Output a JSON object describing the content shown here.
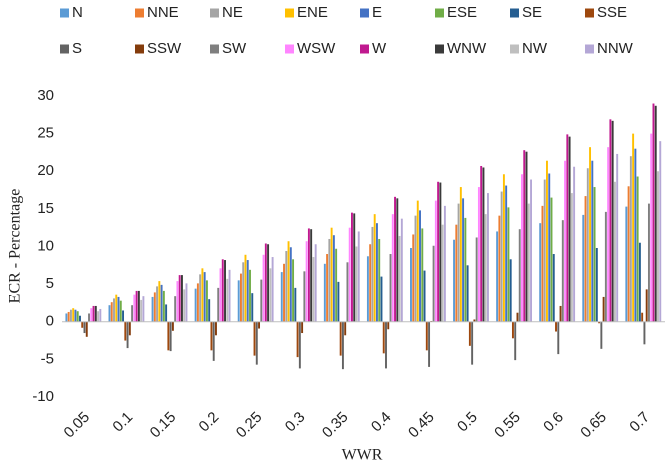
{
  "chart_data": {
    "type": "bar",
    "x_label": "WWR",
    "y_label": "ECR - Percentage",
    "categories": [
      "0.05",
      "0.1",
      "0.15",
      "0.2",
      "0.25",
      "0.3",
      "0.35",
      "0.4",
      "0.45",
      "0.5",
      "0.55",
      "0.6",
      "0.65",
      "0.7"
    ],
    "ylim": [
      -10,
      30
    ],
    "yticks": [
      -10,
      -5,
      0,
      5,
      10,
      15,
      20,
      25,
      30
    ],
    "grid": false,
    "series": [
      {
        "name": "N",
        "color": "#5b9bd5",
        "values": [
          1.1,
          2.2,
          3.3,
          4.4,
          5.5,
          6.6,
          7.7,
          8.7,
          9.8,
          10.9,
          12.0,
          13.1,
          14.2,
          15.3
        ]
      },
      {
        "name": "NNE",
        "color": "#ed7d31",
        "values": [
          1.3,
          2.6,
          3.9,
          5.1,
          6.4,
          7.7,
          9,
          10.3,
          11.6,
          12.9,
          14.1,
          15.4,
          16.7,
          18
        ]
      },
      {
        "name": "NE",
        "color": "#a5a5a5",
        "values": [
          1.6,
          3.1,
          4.7,
          6.3,
          7.9,
          9.4,
          11,
          12.6,
          14.1,
          15.7,
          17.3,
          18.9,
          20.4,
          22
        ]
      },
      {
        "name": "ENE",
        "color": "#ffc000",
        "values": [
          1.8,
          3.6,
          5.4,
          7.1,
          8.9,
          10.7,
          12.5,
          14.3,
          16.1,
          17.9,
          19.6,
          21.4,
          23.2,
          25
        ]
      },
      {
        "name": "E",
        "color": "#4472c4",
        "values": [
          1.6,
          3.3,
          4.9,
          6.6,
          8.2,
          9.9,
          11.5,
          13.1,
          14.8,
          16.4,
          18.1,
          19.7,
          21.4,
          23
        ]
      },
      {
        "name": "ESE",
        "color": "#70ad47",
        "values": [
          1.4,
          2.8,
          4.1,
          5.5,
          6.9,
          8.3,
          9.7,
          11,
          12.4,
          13.8,
          15.2,
          16.5,
          17.9,
          19.3
        ]
      },
      {
        "name": "SE",
        "color": "#255e91",
        "values": [
          0.8,
          1.5,
          2.3,
          3,
          3.8,
          4.5,
          5.3,
          6,
          6.8,
          7.5,
          8.3,
          9,
          9.8,
          10.5
        ]
      },
      {
        "name": "SSE",
        "color": "#9e480e",
        "values": [
          -0.8,
          -2.5,
          -3.8,
          -3.8,
          -4.5,
          -4.7,
          -4.5,
          -4.2,
          -3.8,
          -3.2,
          -2.2,
          -1.3,
          -0.2,
          1.2
        ]
      },
      {
        "name": "S",
        "color": "#636363",
        "values": [
          -1.5,
          -3.5,
          -3.9,
          -5.2,
          -5.7,
          -6.2,
          -6.3,
          -6.2,
          -6,
          -5.7,
          -5.1,
          -4.3,
          -3.6,
          -3
        ]
      },
      {
        "name": "SSW",
        "color": "#843c0c",
        "values": [
          -2,
          -1.8,
          -1.2,
          -1.8,
          -0.9,
          -1.5,
          -1.8,
          -1,
          0.1,
          0.3,
          1.2,
          2.1,
          3.3,
          4.3
        ]
      },
      {
        "name": "SW",
        "color": "#7f7f7f",
        "values": [
          1.1,
          2.2,
          3.4,
          4.5,
          5.6,
          6.7,
          7.9,
          9,
          10.1,
          11.2,
          12.3,
          13.5,
          14.6,
          15.7
        ]
      },
      {
        "name": "WSW",
        "color": "#ff85ff",
        "values": [
          1.8,
          3.6,
          5.4,
          7.1,
          8.9,
          10.7,
          12.5,
          14.3,
          16.1,
          17.9,
          19.6,
          21.4,
          23.2,
          25
        ]
      },
      {
        "name": "W",
        "color": "#c0198f",
        "values": [
          2.1,
          4.1,
          6.2,
          8.3,
          10.4,
          12.4,
          14.5,
          16.6,
          18.6,
          20.7,
          22.8,
          24.9,
          26.9,
          29
        ]
      },
      {
        "name": "WNW",
        "color": "#3a3a3a",
        "values": [
          2.1,
          4.1,
          6.2,
          8.2,
          10.3,
          12.3,
          14.4,
          16.4,
          18.5,
          20.5,
          22.6,
          24.6,
          26.7,
          28.7
        ]
      },
      {
        "name": "NW",
        "color": "#bfbfbf",
        "values": [
          1.4,
          2.9,
          4.3,
          5.7,
          7.1,
          8.6,
          10,
          11.4,
          12.9,
          14.3,
          15.7,
          17.1,
          18.6,
          20
        ]
      },
      {
        "name": "NNW",
        "color": "#b4a7d6",
        "values": [
          1.7,
          3.4,
          5.1,
          6.9,
          8.6,
          10.3,
          12,
          13.7,
          15.4,
          17.1,
          18.9,
          20.6,
          22.3,
          24
        ]
      }
    ]
  }
}
